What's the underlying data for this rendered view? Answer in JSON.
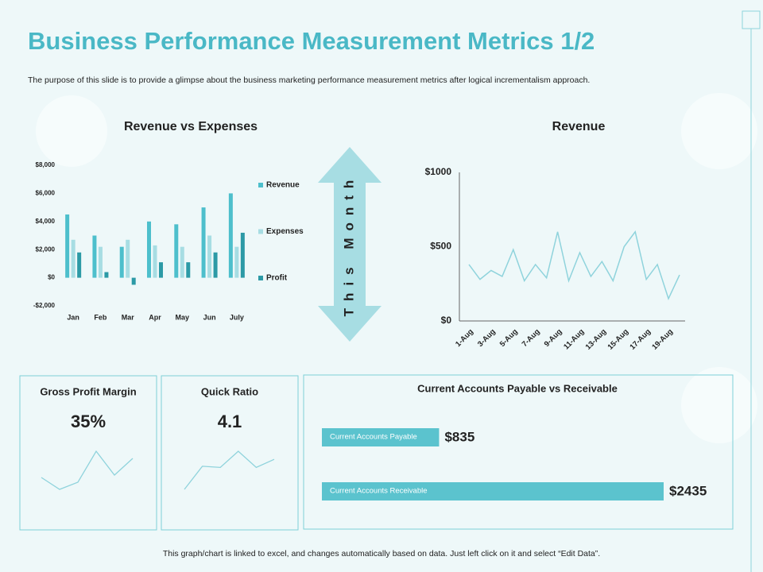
{
  "header": {
    "title": "Business Performance Measurement Metrics 1/2",
    "subtitle": "The purpose of this slide is to provide a glimpse about the business marketing performance measurement metrics after logical incrementalism approach."
  },
  "arrow_label": "This Month",
  "footer": "This graph/chart is linked to excel, and changes automatically based on data. Just left click on it and select “Edit Data”.",
  "chart_data": [
    {
      "type": "bar",
      "title": "Revenue vs Expenses",
      "categories": [
        "Jan",
        "Feb",
        "Mar",
        "Apr",
        "May",
        "Jun",
        "July"
      ],
      "series": [
        {
          "name": "Revenue",
          "color": "#4dbfcc",
          "values": [
            4500,
            3000,
            2200,
            4000,
            3800,
            5000,
            6000
          ]
        },
        {
          "name": "Expenses",
          "color": "#a7dde3",
          "values": [
            2700,
            2200,
            2700,
            2300,
            2200,
            3000,
            2200
          ]
        },
        {
          "name": "Profit",
          "color": "#2c9aa6",
          "values": [
            1800,
            400,
            -500,
            1100,
            1100,
            1800,
            3200
          ]
        }
      ],
      "ylim": [
        -2000,
        8000
      ],
      "yticks": [
        {
          "value": -2000,
          "label": "-$2,000"
        },
        {
          "value": 0,
          "label": "$0"
        },
        {
          "value": 2000,
          "label": "$2,000"
        },
        {
          "value": 4000,
          "label": "$4,000"
        },
        {
          "value": 6000,
          "label": "$6,000"
        },
        {
          "value": 8000,
          "label": "$8,000"
        }
      ],
      "legend": "right"
    },
    {
      "type": "line",
      "title": "Revenue",
      "color": "#8fd3dc",
      "categories": [
        "1-Aug",
        null,
        "3-Aug",
        null,
        "5-Aug",
        null,
        "7-Aug",
        null,
        "9-Aug",
        null,
        "11-Aug",
        null,
        "13-Aug",
        null,
        "15-Aug",
        null,
        "17-Aug",
        null,
        "19-Aug",
        null
      ],
      "values": [
        380,
        280,
        340,
        300,
        480,
        270,
        380,
        290,
        600,
        270,
        460,
        300,
        400,
        270,
        500,
        600,
        280,
        380,
        150,
        310
      ],
      "ylim": [
        0,
        1000
      ],
      "yticks": [
        {
          "value": 0,
          "label": "$0"
        },
        {
          "value": 500,
          "label": "$500"
        },
        {
          "value": 1000,
          "label": "$1000"
        }
      ]
    },
    {
      "type": "sparkline",
      "title": "Gross Profit Margin",
      "kpi": "35%",
      "color": "#8fd3dc",
      "values": [
        30,
        20,
        26,
        52,
        32,
        46
      ]
    },
    {
      "type": "sparkline",
      "title": "Quick Ratio",
      "kpi": "4.1",
      "color": "#8fd3dc",
      "values": [
        10,
        30,
        29,
        43,
        29,
        36
      ]
    },
    {
      "type": "hbar",
      "title": "Current Accounts Payable vs Receivable",
      "color": "#5bc3ce",
      "categories": [
        "Current Accounts Payable",
        "Current Accounts Receivable"
      ],
      "values": [
        835,
        2435
      ],
      "value_labels": [
        "$835",
        "$2435"
      ]
    }
  ]
}
